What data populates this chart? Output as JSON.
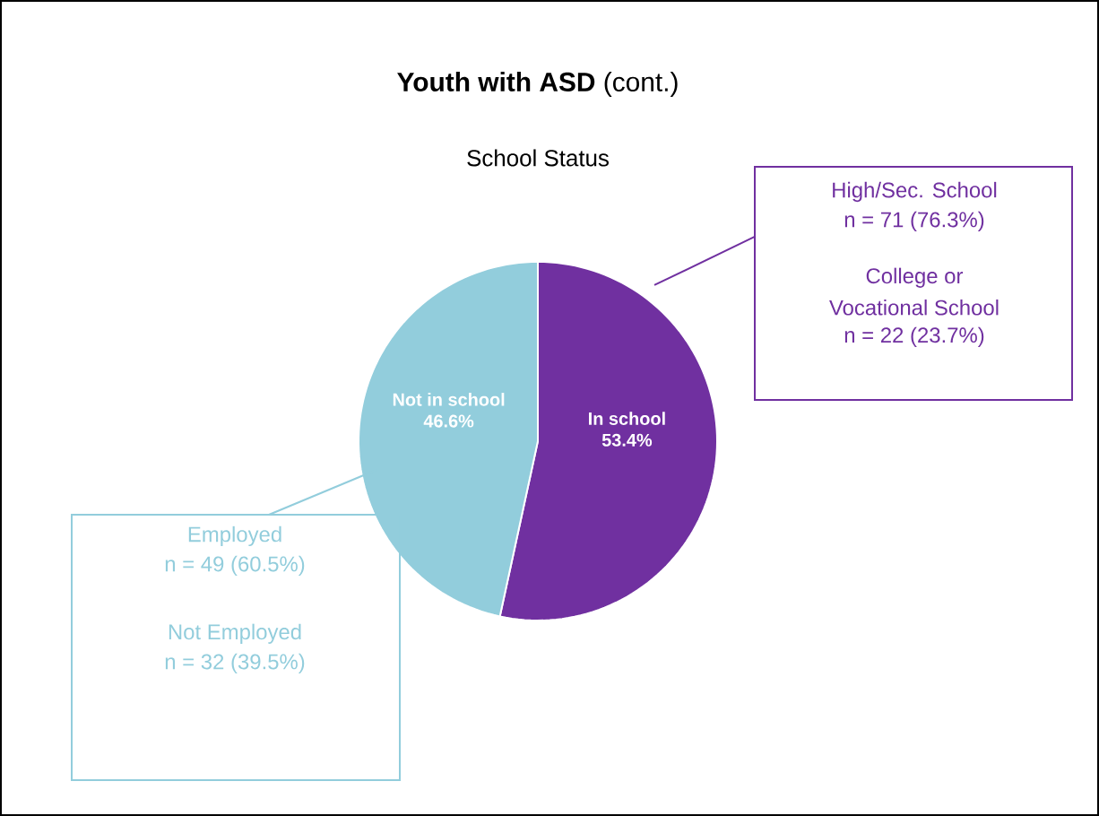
{
  "chart_data": {
    "type": "pie",
    "title": "**Youth with ASD** (cont.)",
    "subtitle": "School Status",
    "categories": [
      "In school",
      "Not in school"
    ],
    "values": [
      53.4,
      46.6
    ],
    "colors": [
      "#7030a0",
      "#92cddc"
    ],
    "value_labels": [
      "53.4%",
      "46.6%"
    ],
    "annotations": [
      "High/Sec. School",
      "n = 71 (76.3%)",
      "College or",
      "Vocational School",
      "n = 22 (23.7%)",
      "Employed",
      "n = 49 (60.5%)",
      "Not Employed",
      "n = 32 (39.5%)"
    ]
  }
}
